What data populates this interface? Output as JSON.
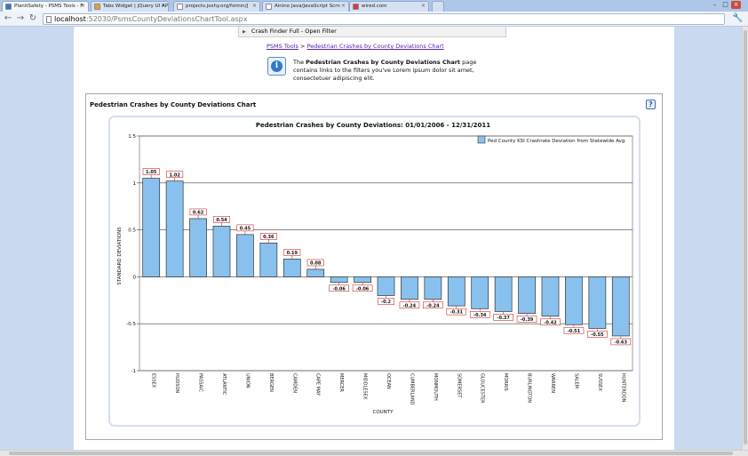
{
  "browser": {
    "tabs": [
      {
        "label": "PlanitSafety - PSMS Tools - F",
        "active": true,
        "favicon_color": "#2f7ad1"
      },
      {
        "label": "Tabs Widget | jQuery UI AP",
        "active": false,
        "favicon_color": "#e8a030"
      },
      {
        "label": "projects.joshy.org/fsimin/J",
        "active": false,
        "favicon_color": "#ffffff"
      },
      {
        "label": "Ainino Java/JavaScript Scrn",
        "active": false,
        "favicon_color": "#ffffff"
      },
      {
        "label": "wired.com",
        "active": false,
        "favicon_color": "#d63b3b"
      }
    ],
    "url_host": "localhost",
    "url_path": ":52030/PsmsCountyDeviationsChartTool.aspx"
  },
  "page": {
    "filter_bar": "Crash Finder Full - Open Filter",
    "breadcrumb": {
      "root": "PSMS Tools",
      "separator": ">",
      "current": "Pedestrian Crashes by County Deviations Chart"
    },
    "info": {
      "prefix": "The ",
      "bold": "Pedestrian Crashes by County Deviations Chart",
      "suffix": " page contains links to the filters you've Lorem ipsum dolor sit amet, consectetuer adipiscing elit."
    },
    "panel_title": "Pedestrian Crashes by County Deviations Chart",
    "help_label": "?"
  },
  "chart_data": {
    "type": "bar",
    "title": "Pedestrian Crashes by County Deviations: 01/01/2006 - 12/31/2011",
    "xlabel": "COUNTY",
    "ylabel": "STANDARD DEVIATIONS",
    "ylim": [
      -1,
      1.5
    ],
    "yticks": [
      "-1",
      "-0.5",
      "0",
      "0.5",
      "1",
      "1.5"
    ],
    "legend": "Ped County KSI Crashrate Deviation from Statewide Avg",
    "legend_position": "top-right",
    "grid": true,
    "bar_color": "#89c1ee",
    "bar_edge": "#333333",
    "label_color": "#d03030",
    "categories": [
      "ESSEX",
      "HUDSON",
      "PASSAIC",
      "ATLANTIC",
      "UNION",
      "BERGEN",
      "CAMDEN",
      "CAPE MAY",
      "MERCER",
      "MIDDLESEX",
      "OCEAN",
      "CUMBERLAND",
      "MONMOUTH",
      "SOMERSET",
      "GLOUCESTER",
      "MORRIS",
      "BURLINGTON",
      "WARREN",
      "SALEM",
      "SUSSEX",
      "HUNTERDON"
    ],
    "values": [
      1.05,
      1.02,
      0.62,
      0.54,
      0.45,
      0.36,
      0.19,
      0.08,
      -0.06,
      -0.06,
      -0.2,
      -0.24,
      -0.24,
      -0.31,
      -0.34,
      -0.37,
      -0.39,
      -0.42,
      -0.51,
      -0.55,
      -0.63
    ],
    "value_labels": [
      "1.05",
      "1.02",
      "0.62",
      "0.54",
      "0.45",
      "0.36",
      "0.19",
      "0.08",
      "-0.06",
      "-0.06",
      "-0.2",
      "-0.24",
      "-0.24",
      "-0.31",
      "-0.34",
      "-0.37",
      "-0.39",
      "-0.42",
      "-0.51",
      "-0.55",
      "-0.63"
    ]
  }
}
